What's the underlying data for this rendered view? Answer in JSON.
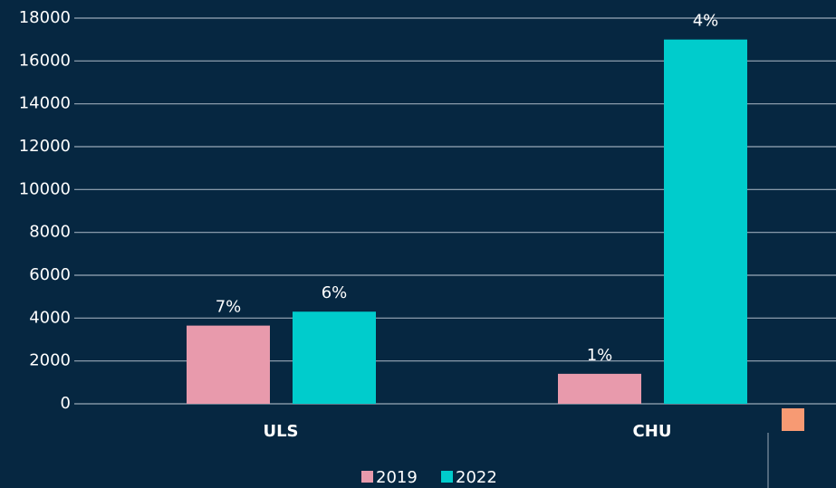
{
  "chart_data": {
    "type": "bar",
    "categories": [
      "ULS",
      "CHU"
    ],
    "series": [
      {
        "name": "2019",
        "color": "#e89aac",
        "values": [
          3650,
          1400
        ],
        "labels": [
          "7%",
          "1%"
        ]
      },
      {
        "name": "2022",
        "color": "#00cccc",
        "values": [
          4300,
          17000
        ],
        "labels": [
          "6%",
          "4%"
        ]
      }
    ],
    "ylim": [
      0,
      18000
    ],
    "yticks": [
      0,
      2000,
      4000,
      6000,
      8000,
      10000,
      12000,
      14000,
      16000,
      18000
    ],
    "grid": true,
    "legend": "bottom"
  }
}
